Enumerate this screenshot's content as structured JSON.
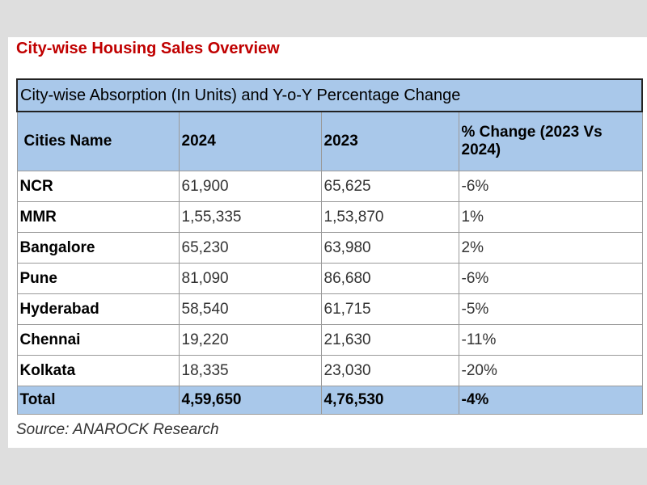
{
  "doc_title": "City-wise Housing Sales Overview",
  "table": {
    "caption": "City-wise Absorption (In Units) and Y-o-Y Percentage Change",
    "headers": [
      "Cities Name",
      "2024",
      "2023",
      "% Change (2023 Vs 2024)"
    ],
    "rows": [
      [
        "NCR",
        "61,900",
        "65,625",
        "-6%"
      ],
      [
        "MMR",
        "1,55,335",
        "1,53,870",
        "1%"
      ],
      [
        "Bangalore",
        "65,230",
        "63,980",
        "2%"
      ],
      [
        "Pune",
        "81,090",
        "86,680",
        "-6%"
      ],
      [
        "Hyderabad",
        "58,540",
        "61,715",
        "-5%"
      ],
      [
        "Chennai",
        "19,220",
        "21,630",
        "-11%"
      ],
      [
        "Kolkata",
        "18,335",
        "23,030",
        "-20%"
      ]
    ],
    "total": [
      "Total",
      "4,59,650",
      "4,76,530",
      "-4%"
    ]
  },
  "source": "Source: ANAROCK Research",
  "colors": {
    "title": "#c00000",
    "header_fill": "#a9c8ea",
    "background": "#dedede"
  }
}
